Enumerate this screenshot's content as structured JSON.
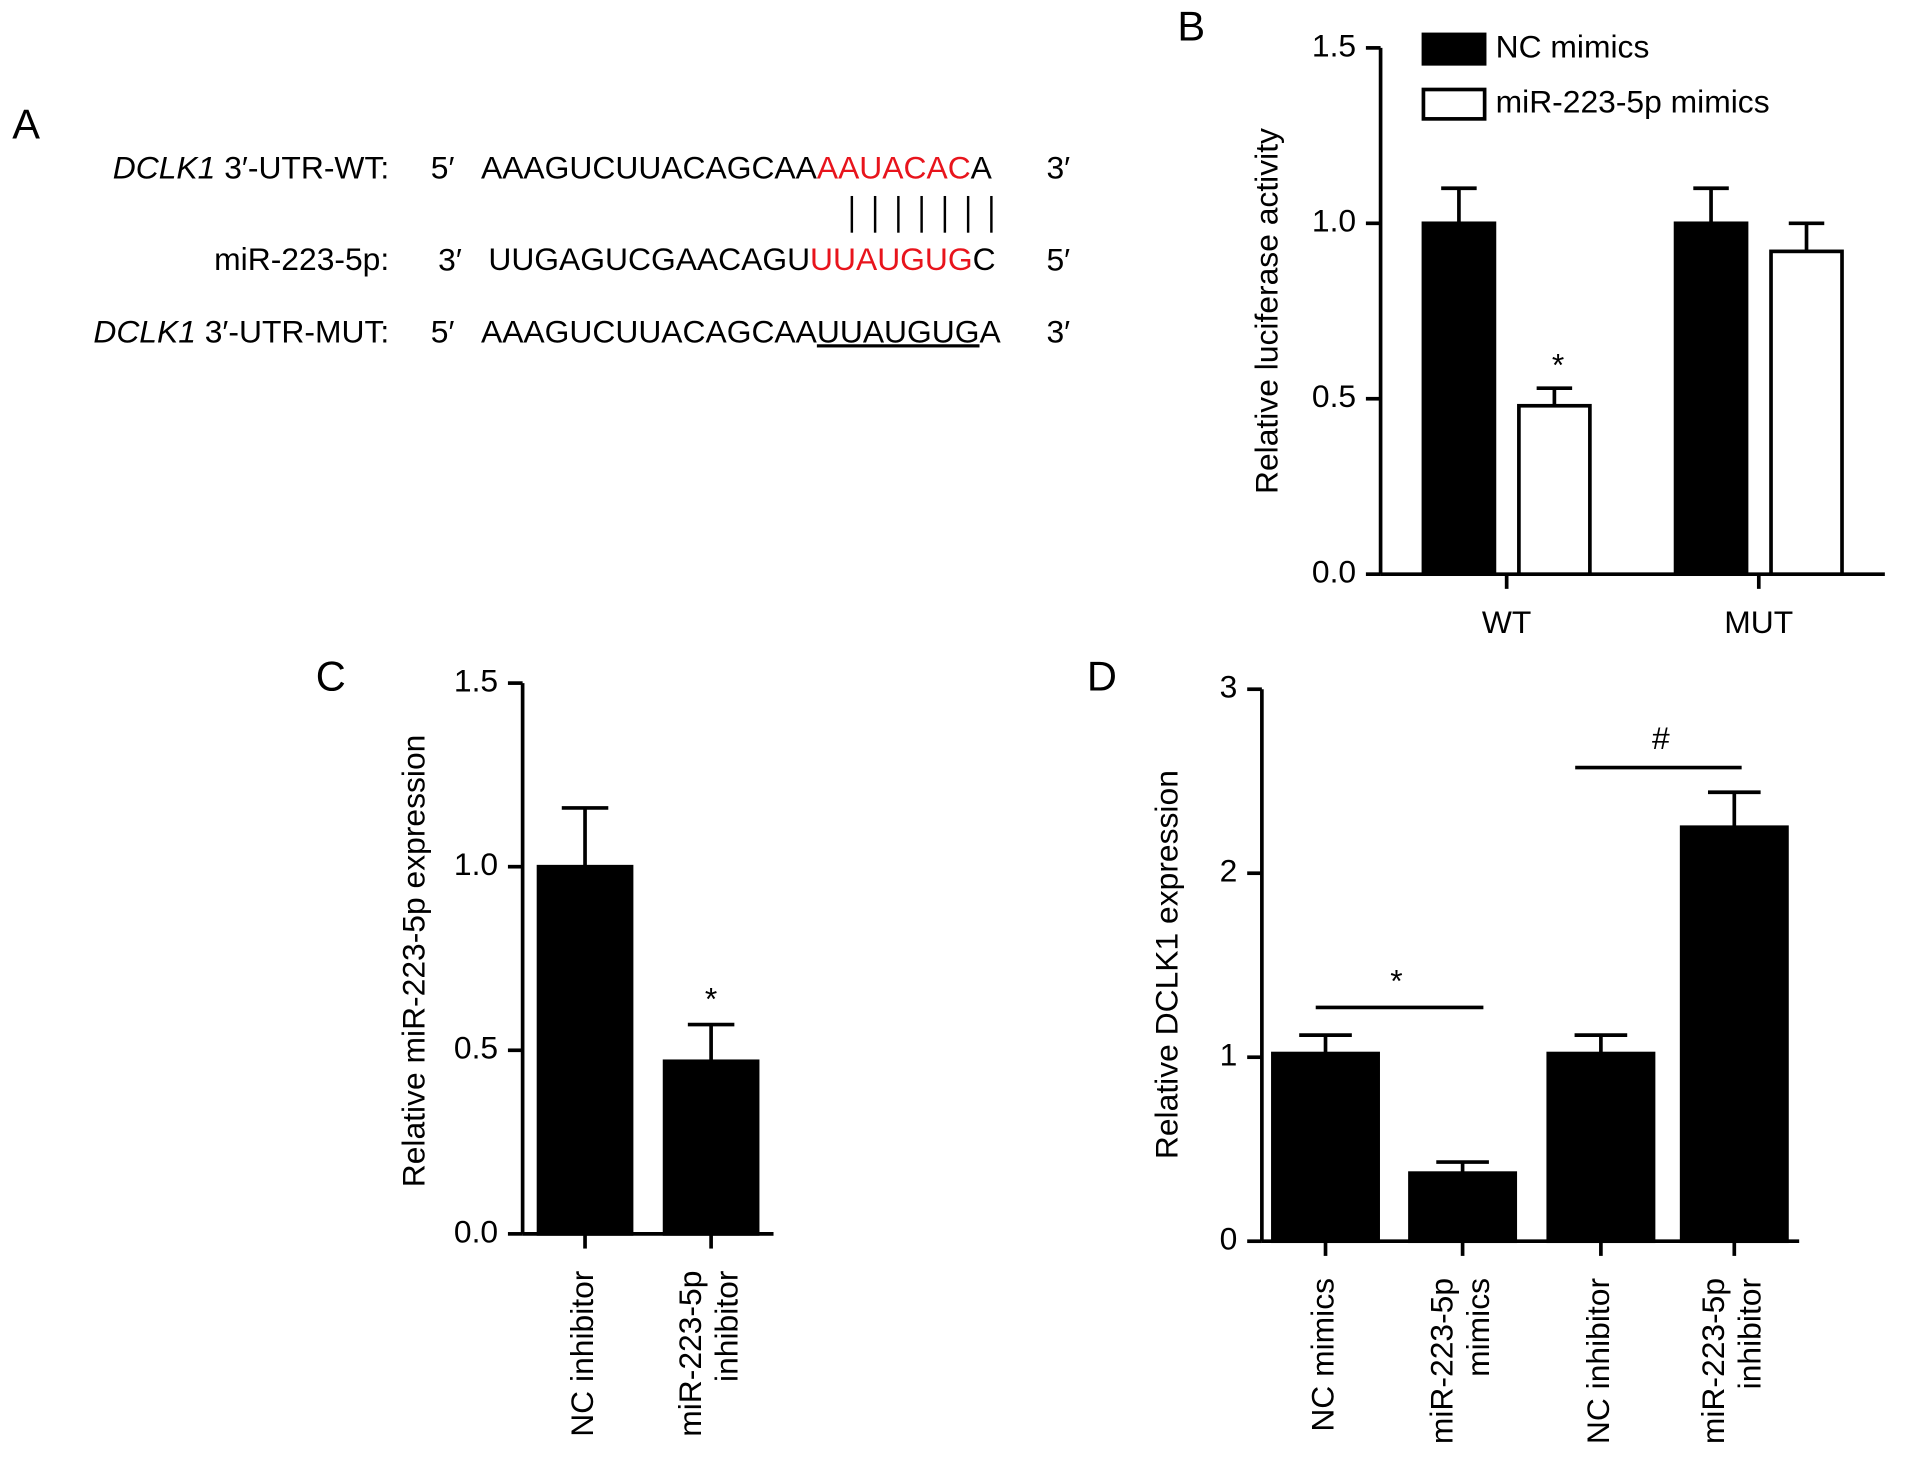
{
  "panel_a": {
    "label": "A",
    "rows": [
      {
        "label": [
          "DCLK1",
          " 3′-UTR-WT:"
        ],
        "left": "5′",
        "segments": [
          "AAAGUCUUACAGCAA",
          "AAUACAC",
          "A"
        ],
        "right": "3′",
        "highlight": "#e8141c"
      },
      {
        "label": [
          "miR-223-5p:"
        ],
        "left": "3′",
        "segments": [
          "UUGAGUCGAACAGU",
          "UUAUGUG",
          "C"
        ],
        "right": "5′",
        "highlight": "#e8141c"
      },
      {
        "label": [
          "DCLK1",
          " 3′-UTR-MUT:"
        ],
        "left": "5′",
        "segments": [
          "AAAGUCUUACAGCAA",
          "UUAUGUG",
          "A"
        ],
        "right": "3′",
        "highlight": "underline"
      }
    ]
  },
  "chart_data": [
    {
      "type": "bar",
      "panel": "B",
      "ylabel": "Relative luciferase activity",
      "categories": [
        "WT",
        "MUT"
      ],
      "series": [
        {
          "name": "NC mimics",
          "color": "#000000",
          "values": [
            1.0,
            1.0
          ],
          "errors": [
            0.1,
            0.1
          ]
        },
        {
          "name": "miR-223-5p mimics",
          "color": "#ffffff",
          "values": [
            0.48,
            0.92
          ],
          "errors": [
            0.05,
            0.08
          ]
        }
      ],
      "ylim": [
        0,
        1.5
      ],
      "yticks": [
        {
          "value": 0,
          "label": "0.0"
        },
        {
          "value": 0.5,
          "label": "0.5"
        },
        {
          "value": 1,
          "label": "1.0"
        },
        {
          "value": 1.5,
          "label": "1.5"
        }
      ],
      "legend": "upper left",
      "annotations": [
        "*"
      ]
    },
    {
      "type": "bar",
      "panel": "C",
      "ylabel": "Relative miR-223-5p expression",
      "categories": [
        "NC inhibitor",
        "miR-223-5p\ninhibitor"
      ],
      "values": [
        1.0,
        0.47
      ],
      "errors": [
        0.16,
        0.1
      ],
      "color": "#000000",
      "ylim": [
        0,
        1.5
      ],
      "yticks": [
        {
          "value": 0,
          "label": "0.0"
        },
        {
          "value": 0.5,
          "label": "0.5"
        },
        {
          "value": 1,
          "label": "1.0"
        },
        {
          "value": 1.5,
          "label": "1.5"
        }
      ],
      "annotations": [
        "*"
      ]
    },
    {
      "type": "bar",
      "panel": "D",
      "ylabel": "Relative DCLK1 expression",
      "categories": [
        "NC mimics",
        "miR-223-5p\nmimics",
        "NC inhibitor",
        "miR-223-5p\ninhibitor"
      ],
      "values": [
        1.02,
        0.37,
        1.02,
        2.25
      ],
      "errors": [
        0.1,
        0.06,
        0.1,
        0.19
      ],
      "color": "#000000",
      "ylim": [
        0,
        3
      ],
      "yticks": [
        0,
        1,
        2,
        3
      ],
      "annotations": [
        "*",
        "#"
      ]
    }
  ]
}
